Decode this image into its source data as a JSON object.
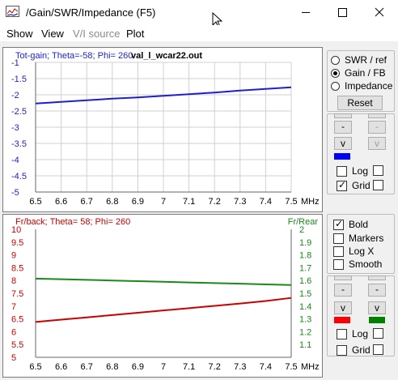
{
  "window": {
    "title": "/Gain/SWR/Impedance (F5)",
    "icon": "chart-app-icon"
  },
  "menu": [
    {
      "label": "Show",
      "enabled": true
    },
    {
      "label": "View",
      "enabled": true
    },
    {
      "label": "V/I source",
      "enabled": false
    },
    {
      "label": "Plot",
      "enabled": true
    }
  ],
  "top_plot": {
    "header_left": "Tot-gain; Theta=-58; Phi= 260",
    "header_file": "val_l_wcar22.out",
    "header_color": "#1f1fcf",
    "x_unit": "MHz"
  },
  "bottom_plot": {
    "header_left": "Fr/back; Theta= 58; Phi= 260",
    "header_right": "Fr/Rear",
    "left_color": "#cc0000",
    "right_color": "#1a8a1a",
    "x_unit": "MHz"
  },
  "side_top": {
    "radios": [
      {
        "label": "SWR / ref",
        "checked": false
      },
      {
        "label": "Gain / FB",
        "checked": true
      },
      {
        "label": "Impedance",
        "checked": false
      }
    ],
    "reset_label": "Reset",
    "swatch_color": "#0000ff",
    "log_label": "Log",
    "log_checked": false,
    "grid_label": "Grid",
    "grid_checked": true
  },
  "side_bottom": {
    "bold_label": "Bold",
    "bold_checked": true,
    "markers_label": "Markers",
    "markers_checked": false,
    "logx_label": "Log X",
    "logx_checked": false,
    "smooth_label": "Smooth",
    "smooth_checked": false,
    "swatch_left": "#ff0000",
    "swatch_right": "#008000",
    "log_label": "Log",
    "log_checked": false,
    "grid_label": "Grid",
    "grid_checked": false
  },
  "chart_data": [
    {
      "type": "line",
      "title": "Tot-gain; Theta=-58; Phi= 260",
      "xlabel": "MHz",
      "ylabel": "",
      "xlim": [
        6.5,
        7.5
      ],
      "ylim": [
        -5,
        -1
      ],
      "x_ticks": [
        "6.5",
        "6.6",
        "6.7",
        "6.8",
        "6.9",
        "7",
        "7.1",
        "7.2",
        "7.3",
        "7.4",
        "7.5"
      ],
      "y_ticks": [
        "-1",
        "-1.5",
        "-2",
        "-2.5",
        "-3",
        "-3.5",
        "-4",
        "-4.5",
        "-5"
      ],
      "grid": true,
      "series": [
        {
          "name": "Tot-gain",
          "color": "#1f1fcf",
          "x": [
            6.5,
            6.6,
            6.7,
            6.8,
            6.9,
            7.0,
            7.1,
            7.2,
            7.3,
            7.4,
            7.5
          ],
          "y": [
            -2.27,
            -2.22,
            -2.17,
            -2.12,
            -2.08,
            -2.03,
            -1.98,
            -1.93,
            -1.87,
            -1.82,
            -1.77
          ]
        }
      ]
    },
    {
      "type": "line",
      "title": "Fr/back; Theta= 58; Phi= 260",
      "xlabel": "MHz",
      "x_ticks": [
        "6.5",
        "6.6",
        "6.7",
        "6.8",
        "6.9",
        "7",
        "7.1",
        "7.2",
        "7.3",
        "7.4",
        "7.5"
      ],
      "xlim": [
        6.5,
        7.5
      ],
      "ylim_left": [
        5,
        10
      ],
      "ylim_right": [
        1.0,
        2.0
      ],
      "y_ticks_left": [
        "10",
        "9.5",
        "9",
        "8.5",
        "8",
        "7.5",
        "7",
        "6.5",
        "6",
        "5.5",
        "5"
      ],
      "y_ticks_right": [
        "2",
        "1.9",
        "1.8",
        "1.7",
        "1.6",
        "1.5",
        "1.4",
        "1.3",
        "1.2",
        "1.1"
      ],
      "grid": false,
      "series": [
        {
          "name": "Fr/back",
          "axis": "left",
          "color": "#cc0000",
          "x": [
            6.5,
            6.6,
            6.7,
            6.8,
            6.9,
            7.0,
            7.1,
            7.2,
            7.3,
            7.4,
            7.5
          ],
          "y": [
            6.38,
            6.47,
            6.56,
            6.65,
            6.74,
            6.83,
            6.92,
            7.01,
            7.1,
            7.2,
            7.32
          ]
        },
        {
          "name": "Fr/Rear",
          "axis": "right",
          "color": "#1a8a1a",
          "x": [
            6.5,
            6.6,
            6.7,
            6.8,
            6.9,
            7.0,
            7.1,
            7.2,
            7.3,
            7.4,
            7.5
          ],
          "y": [
            1.615,
            1.61,
            1.605,
            1.6,
            1.595,
            1.59,
            1.585,
            1.58,
            1.575,
            1.57,
            1.565
          ]
        }
      ]
    }
  ]
}
